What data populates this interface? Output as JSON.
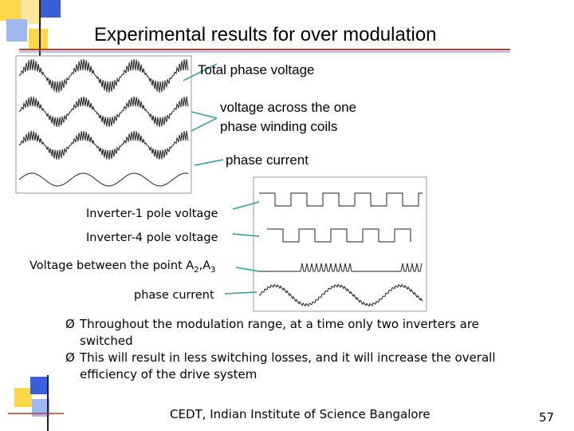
{
  "title": "Experimental results for over modulation",
  "top_labels": {
    "total": "Total phase voltage",
    "coils": [
      "voltage across the one",
      "phase winding coils"
    ],
    "current": "phase current"
  },
  "bottom_labels": {
    "inv1": "Inverter-1 pole voltage",
    "inv4": "Inverter-4 pole voltage",
    "between": [
      "Voltage between the point A",
      "2",
      ",A",
      "3"
    ],
    "current": "phase current"
  },
  "bullets": [
    [
      "Throughout the modulation range, at a time only two inverters are",
      "switched"
    ],
    [
      "This will result in less switching losses, and it will increase the overall",
      "efficiency of the drive system"
    ]
  ],
  "bullet_marker": "Ø",
  "footer": "CEDT, Indian Institute of Science Bangalore",
  "page_number": "57"
}
